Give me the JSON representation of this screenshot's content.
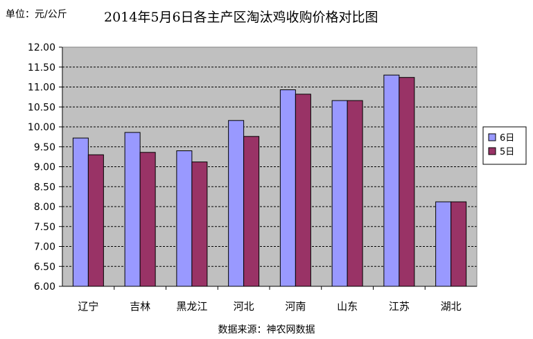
{
  "header": {
    "unit": "单位：元/公斤",
    "title": "2014年5月6日各主产区淘汰鸡收购价格对比图"
  },
  "footer": {
    "source": "数据来源：神农网数据"
  },
  "colors": {
    "plot_bg": "#c0c0c0",
    "series_6": "#9999ff",
    "series_5": "#993366",
    "gridline": "#000000"
  },
  "chart_data": {
    "type": "bar",
    "categories": [
      "辽宁",
      "吉林",
      "黑龙江",
      "河北",
      "河南",
      "山东",
      "江苏",
      "湖北"
    ],
    "series": [
      {
        "name": "6日",
        "values": [
          9.72,
          9.86,
          9.4,
          10.16,
          10.93,
          10.66,
          11.3,
          8.12
        ]
      },
      {
        "name": "5日",
        "values": [
          9.3,
          9.36,
          9.12,
          9.76,
          10.82,
          10.66,
          11.24,
          8.12
        ]
      }
    ],
    "ylim": [
      6.0,
      12.0
    ],
    "yticks": [
      "6.00",
      "6.50",
      "7.00",
      "7.50",
      "8.00",
      "8.50",
      "9.00",
      "9.50",
      "10.00",
      "10.50",
      "11.00",
      "11.50",
      "12.00"
    ],
    "grid": true,
    "legend_position": "right"
  }
}
